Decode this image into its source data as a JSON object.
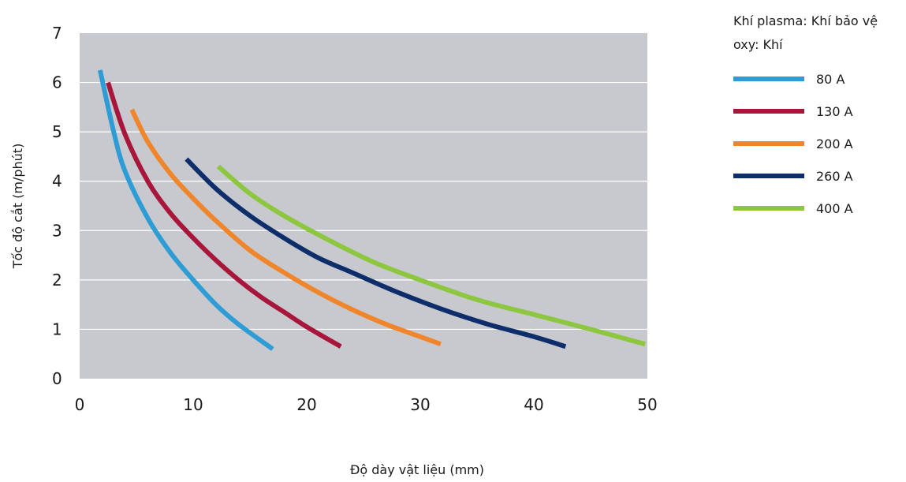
{
  "chart_data": {
    "type": "line",
    "xlabel": "Độ dày vật liệu (mm)",
    "ylabel": "Tốc độ cắt (m/phút)",
    "xlim": [
      0,
      50
    ],
    "ylim": [
      0,
      7
    ],
    "x_ticks": [
      "0",
      "10",
      "20",
      "30",
      "40",
      "50"
    ],
    "y_ticks": [
      "0",
      "1",
      "2",
      "3",
      "4",
      "5",
      "6",
      "7"
    ],
    "plot_background": "#c8c9ce",
    "grid": "horizontal",
    "legend": {
      "placement": "right",
      "title_lines": [
        "Khí plasma: Khí bảo vệ",
        "oxy: Khí"
      ]
    },
    "series": [
      {
        "name": "80 A",
        "color": "#2e9cd5",
        "x": [
          1.8,
          3,
          4,
          6,
          8,
          10,
          12,
          14,
          17
        ],
        "y": [
          6.25,
          5.0,
          4.2,
          3.25,
          2.55,
          2.0,
          1.5,
          1.1,
          0.6
        ]
      },
      {
        "name": "130 A",
        "color": "#a8173b",
        "x": [
          2.5,
          4,
          6,
          8,
          10,
          12,
          14,
          16,
          18,
          20,
          23
        ],
        "y": [
          6.0,
          4.95,
          4.0,
          3.35,
          2.85,
          2.4,
          2.0,
          1.65,
          1.35,
          1.05,
          0.65
        ]
      },
      {
        "name": "200 A",
        "color": "#f0862b",
        "x": [
          4.6,
          6,
          8,
          10,
          12,
          15,
          18,
          21,
          24,
          27,
          30,
          31.8
        ],
        "y": [
          5.45,
          4.8,
          4.15,
          3.65,
          3.2,
          2.6,
          2.15,
          1.75,
          1.4,
          1.1,
          0.85,
          0.7
        ]
      },
      {
        "name": "260 A",
        "color": "#0d2d6b",
        "x": [
          9.4,
          12,
          15,
          18,
          21,
          24,
          28,
          32,
          36,
          40,
          42.8
        ],
        "y": [
          4.45,
          3.85,
          3.3,
          2.85,
          2.45,
          2.15,
          1.75,
          1.4,
          1.1,
          0.85,
          0.65
        ]
      },
      {
        "name": "400 A",
        "color": "#8dc63f",
        "x": [
          12.2,
          15,
          18,
          22,
          26,
          30,
          35,
          40,
          45,
          49.8
        ],
        "y": [
          4.3,
          3.75,
          3.3,
          2.8,
          2.35,
          2.0,
          1.6,
          1.3,
          1.0,
          0.7
        ]
      }
    ]
  }
}
